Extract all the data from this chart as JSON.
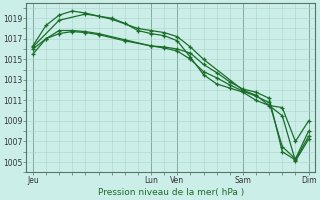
{
  "bg_color": "#cceee8",
  "grid_color": "#aad4cc",
  "line_color": "#1a6e2a",
  "title": "Pression niveau de la mer( hPa )",
  "yticks": [
    1005,
    1007,
    1009,
    1011,
    1013,
    1015,
    1017,
    1019
  ],
  "ylim": [
    1004.0,
    1020.5
  ],
  "xtick_labels": [
    "Jeu",
    "Lun",
    "Ven",
    "Sam",
    "Dim"
  ],
  "xtick_positions": [
    0,
    9,
    11,
    16,
    21
  ],
  "xlim": [
    -0.5,
    21.5
  ],
  "lines": [
    {
      "x": [
        0,
        1,
        2,
        3,
        4,
        6,
        8,
        9,
        10,
        11,
        12,
        13,
        16,
        17,
        19,
        20,
        21
      ],
      "y": [
        1016.3,
        1018.3,
        1019.3,
        1019.7,
        1019.5,
        1018.9,
        1018.0,
        1017.8,
        1017.6,
        1017.2,
        1016.2,
        1015.0,
        1012.0,
        1011.5,
        1009.5,
        1005.1,
        1007.2
      ]
    },
    {
      "x": [
        0,
        1,
        2,
        3,
        4,
        5,
        7,
        9,
        10,
        11,
        12,
        13,
        14,
        15,
        16,
        17,
        18,
        19,
        20,
        21
      ],
      "y": [
        1015.5,
        1017.0,
        1017.8,
        1017.8,
        1017.7,
        1017.5,
        1016.9,
        1016.3,
        1016.2,
        1016.0,
        1015.6,
        1014.5,
        1013.7,
        1012.8,
        1012.1,
        1011.8,
        1011.2,
        1006.0,
        1005.2,
        1007.5
      ]
    },
    {
      "x": [
        0,
        2,
        4,
        5,
        6,
        7,
        8,
        9,
        10,
        11,
        12,
        13,
        14,
        15,
        16,
        17,
        18,
        19,
        20,
        21
      ],
      "y": [
        1016.2,
        1018.8,
        1019.4,
        1019.2,
        1019.0,
        1018.5,
        1017.8,
        1017.5,
        1017.3,
        1016.8,
        1015.2,
        1013.5,
        1012.6,
        1012.2,
        1011.8,
        1011.0,
        1010.5,
        1010.3,
        1007.0,
        1009.0
      ]
    },
    {
      "x": [
        0,
        1,
        2,
        3,
        4,
        5,
        7,
        9,
        10,
        11,
        12,
        13,
        14,
        15,
        16,
        17,
        18,
        19,
        20,
        21
      ],
      "y": [
        1016.0,
        1017.0,
        1017.5,
        1017.7,
        1017.6,
        1017.4,
        1016.8,
        1016.3,
        1016.1,
        1015.8,
        1015.0,
        1013.8,
        1013.2,
        1012.5,
        1011.9,
        1011.4,
        1010.8,
        1006.5,
        1005.3,
        1008.0
      ]
    }
  ]
}
